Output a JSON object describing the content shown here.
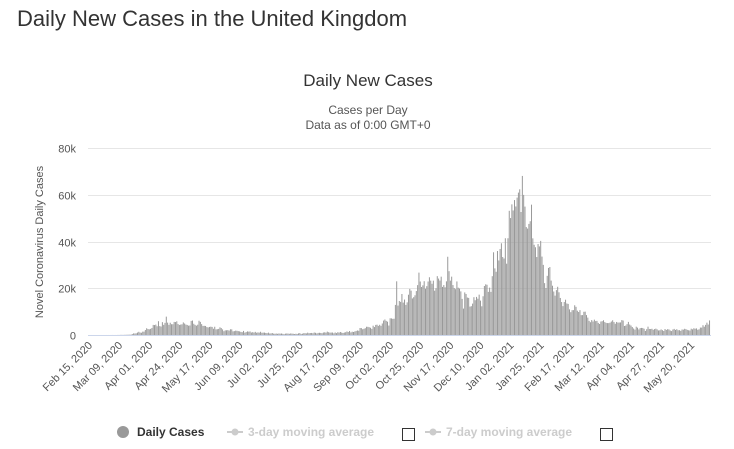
{
  "page": {
    "title": "Daily New Cases in the United Kingdom"
  },
  "chart_data": {
    "type": "bar",
    "title": "Daily New Cases",
    "subtitle_lines": [
      "Cases per Day",
      "Data as of 0:00 GMT+0"
    ],
    "ylabel": "Novel Coronavirus Daily Cases",
    "xlabel": "",
    "ylim": [
      0,
      80000
    ],
    "yticks": [
      0,
      20000,
      40000,
      60000,
      80000
    ],
    "ytick_labels": [
      "0",
      "20k",
      "40k",
      "60k",
      "80k"
    ],
    "x_start_date": "Feb 15, 2020",
    "xtick_labels": [
      "Feb 15, 2020",
      "Mar 09, 2020",
      "Apr 01, 2020",
      "Apr 24, 2020",
      "May 17, 2020",
      "Jun 09, 2020",
      "Jul 02, 2020",
      "Jul 25, 2020",
      "Aug 17, 2020",
      "Sep 09, 2020",
      "Oct 02, 2020",
      "Oct 25, 2020",
      "Nov 17, 2020",
      "Dec 10, 2020",
      "Jan 02, 2021",
      "Jan 25, 2021",
      "Feb 17, 2021",
      "Mar 12, 2021",
      "Apr 04, 2021",
      "Apr 27, 2021",
      "May 20, 2021"
    ],
    "xtick_interval_days": 23,
    "grid": true,
    "bar_color": "#999999",
    "legend_position": "bottom",
    "legend": [
      {
        "label": "Daily Cases",
        "active": true,
        "color": "#999999"
      },
      {
        "label": "3-day moving average",
        "active": false,
        "color": "#cccccc"
      },
      {
        "label": "7-day moving average",
        "active": false,
        "color": "#cccccc"
      }
    ],
    "series": [
      {
        "name": "Daily Cases",
        "values": [
          0,
          0,
          0,
          0,
          0,
          0,
          0,
          0,
          0,
          0,
          3,
          2,
          5,
          3,
          5,
          12,
          5,
          13,
          4,
          34,
          29,
          46,
          65,
          50,
          67,
          83,
          134,
          117,
          133,
          160,
          407,
          676,
          643,
          714,
          1035,
          1372,
          1036,
          968,
          1427,
          1452,
          2129,
          2885,
          2546,
          2433,
          2619,
          3009,
          4324,
          4244,
          4450,
          3735,
          5903,
          3802,
          3634,
          5491,
          4344,
          5195,
          7860,
          5288,
          4342,
          5252,
          4603,
          4617,
          5599,
          5525,
          5850,
          4676,
          4301,
          4451,
          4583,
          5386,
          4913,
          4463,
          4309,
          3996,
          4076,
          6032,
          6201,
          4806,
          4339,
          3985,
          4406,
          6111,
          5614,
          4649,
          3896,
          3923,
          3877,
          3403,
          3242,
          3446,
          3560,
          3451,
          2684,
          3534,
          2412,
          2472,
          2615,
          3287,
          2959,
          2405,
          1625,
          2004,
          2013,
          2095,
          1887,
          2445,
          2409,
          1570,
          1653,
          1871,
          1805,
          1650,
          1557,
          1326,
          1205,
          1741,
          1003,
          1266,
          1541,
          1425,
          1514,
          1056,
          1221,
          1043,
          1346,
          968,
          1118,
          1006,
          1380,
          958,
          1024,
          1033,
          874,
          781,
          1025,
          652,
          689,
          829,
          576,
          544,
          624,
          516,
          650,
          581,
          630,
          512,
          352,
          581,
          642,
          612,
          512,
          650,
          600,
          530,
          420,
          538,
          463,
          687,
          827,
          445,
          560,
          769,
          767,
          688,
          1000,
          763,
          846,
          880,
          744,
          1062,
          938,
          670,
          892,
          950,
          871,
          758,
          1062,
          1148,
          1009,
          1441,
          1182,
          1012,
          1040,
          1063,
          713,
          1089,
          812,
          1182,
          1033,
          1288,
          1041,
          853,
          1048,
          1184,
          1522,
          1276,
          1715,
          1108,
          1406,
          1295,
          1508,
          1735,
          1940,
          1813,
          2988,
          2948,
          2460,
          2659,
          2919,
          3539,
          3497,
          3330,
          3105,
          2621,
          3991,
          3395,
          4322,
          4422,
          3899,
          4368,
          3929,
          4926,
          6178,
          6634,
          6042,
          5693,
          4044,
          7143,
          7108,
          6914,
          6968,
          12872,
          22961,
          12594,
          14542,
          14162,
          17540,
          13864,
          15166,
          12872,
          13972,
          17234,
          19724,
          18980,
          15650,
          16171,
          16982,
          18804,
          21331,
          26688,
          22885,
          20530,
          21242,
          23012,
          19790,
          20890,
          22885,
          24701,
          23254,
          21915,
          23254,
          18950,
          20018,
          25177,
          24141,
          23287,
          24957,
          20572,
          21350,
          20412,
          22950,
          33470,
          27301,
          23254,
          24962,
          21363,
          20051,
          19609,
          22915,
          20252,
          19875,
          18662,
          15450,
          11299,
          18213,
          17555,
          16022,
          15871,
          12155,
          12330,
          13430,
          16170,
          14879,
          16298,
          15539,
          17272,
          14718,
          12282,
          16578,
          20964,
          21672,
          21502,
          18447,
          20263,
          18450,
          25161,
          35383,
          28507,
          27052,
          35928,
          31896,
          36804,
          39237,
          33364,
          32725,
          41385,
          30501,
          41385,
          53135,
          50023,
          55892,
          53285,
          57725,
          54990,
          58784,
          60916,
          62322,
          52618,
          68053,
          59937,
          54940,
          46169,
          45533,
          47525,
          48682,
          55761,
          41346,
          38598,
          37535,
          33355,
          38905,
          37892,
          40261,
          33552,
          30004,
          22195,
          20089,
          25308,
          28680,
          29079,
          23275,
          21088,
          18607,
          16840,
          19202,
          20634,
          18262,
          15845,
          14104,
          12364,
          14104,
          15104,
          13494,
          13308,
          10972,
          9765,
          10625,
          10641,
          12718,
          12057,
          10406,
          9834,
          10641,
          8489,
          8523,
          9938,
          9985,
          8523,
          7434,
          6035,
          5455,
          6385,
          5766,
          6573,
          5947,
          6040,
          5177,
          4712,
          5766,
          5926,
          6303,
          5534,
          5177,
          5089,
          5089,
          5294,
          5758,
          6303,
          5534,
          4802,
          5587,
          5312,
          5342,
          5379,
          6397,
          6187,
          3862,
          4040,
          4654,
          5605,
          4479,
          4052,
          3402,
          2762,
          2297,
          3568,
          3145,
          2379,
          2963,
          3030,
          3009,
          2678,
          1730,
          2472,
          3568,
          2591,
          2555,
          2672,
          2206,
          2524,
          2729,
          2396,
          1946,
          2026,
          2396,
          2061,
          1712,
          2554,
          2166,
          2490,
          2381,
          1907,
          1671,
          2357,
          2613,
          2166,
          2490,
          2047,
          2061,
          1770,
          2357,
          2284,
          2657,
          2490,
          2193,
          2027,
          1926,
          2694,
          2412,
          2874,
          2696,
          2829,
          2235,
          2439,
          3180,
          3165,
          4182,
          3542,
          4330,
          5274,
          4468,
          6238
        ]
      }
    ]
  }
}
